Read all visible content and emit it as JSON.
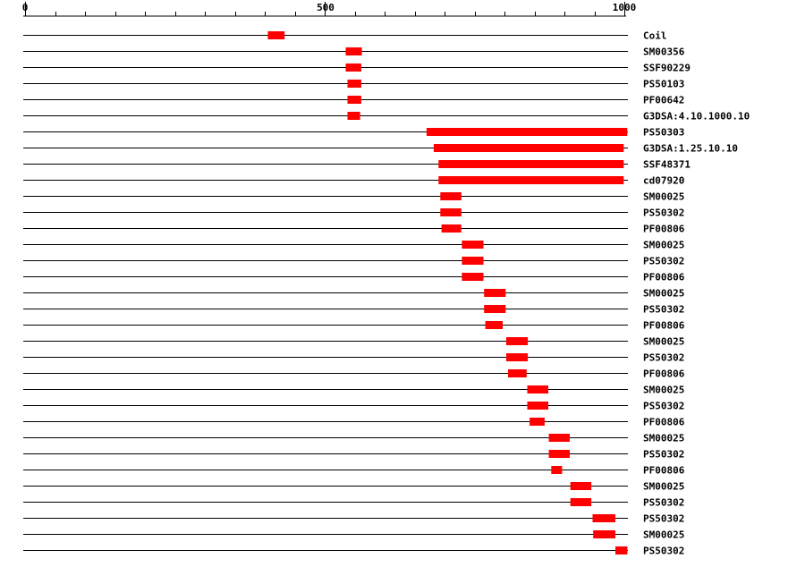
{
  "chart_data": {
    "type": "bar",
    "xlim": [
      0,
      1000
    ],
    "ticks": {
      "labels": [
        "0",
        "500",
        "1000"
      ],
      "major": [
        0,
        500,
        1000
      ],
      "minor_step": 50
    },
    "rows": [
      {
        "label": "Coil",
        "start": 405,
        "end": 433
      },
      {
        "label": "SM00356",
        "start": 535,
        "end": 562
      },
      {
        "label": "SSF90229",
        "start": 535,
        "end": 561
      },
      {
        "label": "PS50103",
        "start": 538,
        "end": 561
      },
      {
        "label": "PF00642",
        "start": 538,
        "end": 561
      },
      {
        "label": "G3DSA:4.10.1000.10",
        "start": 538,
        "end": 559
      },
      {
        "label": "PS50303",
        "start": 670,
        "end": 1005
      },
      {
        "label": "G3DSA:1.25.10.10",
        "start": 682,
        "end": 999
      },
      {
        "label": "SSF48371",
        "start": 690,
        "end": 999
      },
      {
        "label": "cd07920",
        "start": 690,
        "end": 999
      },
      {
        "label": "SM00025",
        "start": 693,
        "end": 728
      },
      {
        "label": "PS50302",
        "start": 693,
        "end": 728
      },
      {
        "label": "PF00806",
        "start": 695,
        "end": 728
      },
      {
        "label": "SM00025",
        "start": 729,
        "end": 765
      },
      {
        "label": "PS50302",
        "start": 729,
        "end": 765
      },
      {
        "label": "PF00806",
        "start": 729,
        "end": 765
      },
      {
        "label": "SM00025",
        "start": 766,
        "end": 802
      },
      {
        "label": "PS50302",
        "start": 766,
        "end": 802
      },
      {
        "label": "PF00806",
        "start": 768,
        "end": 797
      },
      {
        "label": "SM00025",
        "start": 803,
        "end": 839
      },
      {
        "label": "PS50302",
        "start": 803,
        "end": 839
      },
      {
        "label": "PF00806",
        "start": 806,
        "end": 837
      },
      {
        "label": "SM00025",
        "start": 838,
        "end": 873
      },
      {
        "label": "PS50302",
        "start": 838,
        "end": 873
      },
      {
        "label": "PF00806",
        "start": 842,
        "end": 867
      },
      {
        "label": "SM00025",
        "start": 874,
        "end": 909
      },
      {
        "label": "PS50302",
        "start": 874,
        "end": 909
      },
      {
        "label": "PF00806",
        "start": 878,
        "end": 896
      },
      {
        "label": "SM00025",
        "start": 910,
        "end": 945
      },
      {
        "label": "PS50302",
        "start": 910,
        "end": 945
      },
      {
        "label": "PS50302",
        "start": 947,
        "end": 985
      },
      {
        "label": "SM00025",
        "start": 948,
        "end": 985
      },
      {
        "label": "PS50302",
        "start": 985,
        "end": 1005
      }
    ],
    "colors": {
      "bar": "#ff0000",
      "line": "#000000"
    }
  }
}
